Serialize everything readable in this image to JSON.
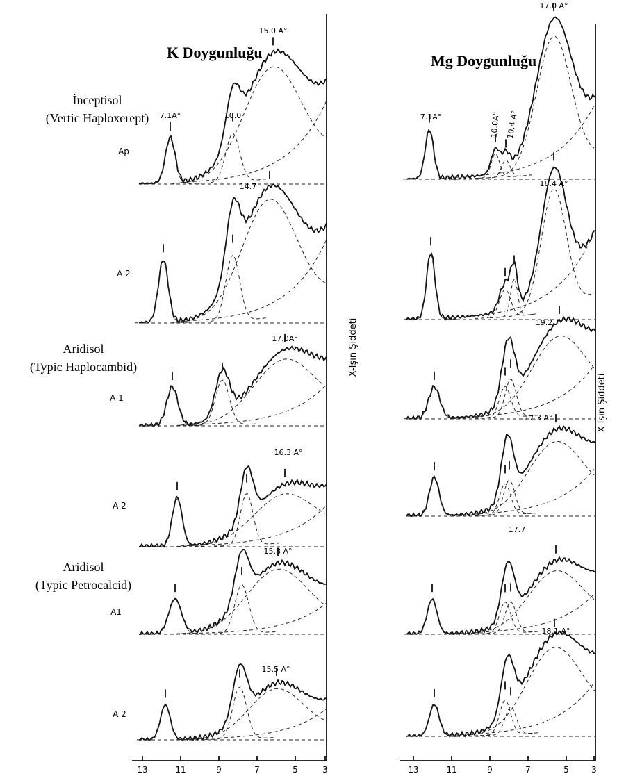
{
  "panels": [
    {
      "title": "K Doygunluğu",
      "y_label": "X-Işın Şiddeti",
      "x_ticks": [
        "13",
        "11",
        "9",
        "7",
        "5",
        "3"
      ],
      "traces": [
        {
          "sample": "Ap",
          "peak_labels": [
            "7.1A°",
            "10.0",
            "15.0 A°"
          ]
        },
        {
          "sample": "A 2",
          "peak_labels": [
            "14.7"
          ]
        },
        {
          "sample": "A 1",
          "peak_labels": [
            "17.0A°"
          ]
        },
        {
          "sample": "A 2",
          "peak_labels": [
            "16.3 A°"
          ]
        },
        {
          "sample": "A1",
          "peak_labels": [
            "15.8 A°"
          ]
        },
        {
          "sample": "A 2",
          "peak_labels": [
            "15.5 A°"
          ]
        }
      ]
    },
    {
      "title": "Mg Doygunluğu",
      "y_label": "X-Işın Şiddeti",
      "x_ticks": [
        "13",
        "11",
        "9",
        "7",
        "5",
        "3"
      ],
      "traces": [
        {
          "peak_labels": [
            "17.0 A°",
            "7.1A°",
            "10.0A°",
            "10.4 A°"
          ]
        },
        {
          "peak_labels": [
            "18.4 A°"
          ]
        },
        {
          "peak_labels": [
            "19.2"
          ]
        },
        {
          "peak_labels": [
            "17.3 A°"
          ]
        },
        {
          "peak_labels": [
            "17.7"
          ]
        },
        {
          "peak_labels": [
            "18.1 A°"
          ]
        }
      ]
    }
  ],
  "soil_groups": [
    {
      "name": "İnceptisol",
      "subname": "(Vertic Haploxerept)"
    },
    {
      "name": "Aridisol",
      "subname": "(Typic Haplocambid)"
    },
    {
      "name": "Aridisol",
      "subname": "(Typic Petrocalcid)"
    }
  ]
}
